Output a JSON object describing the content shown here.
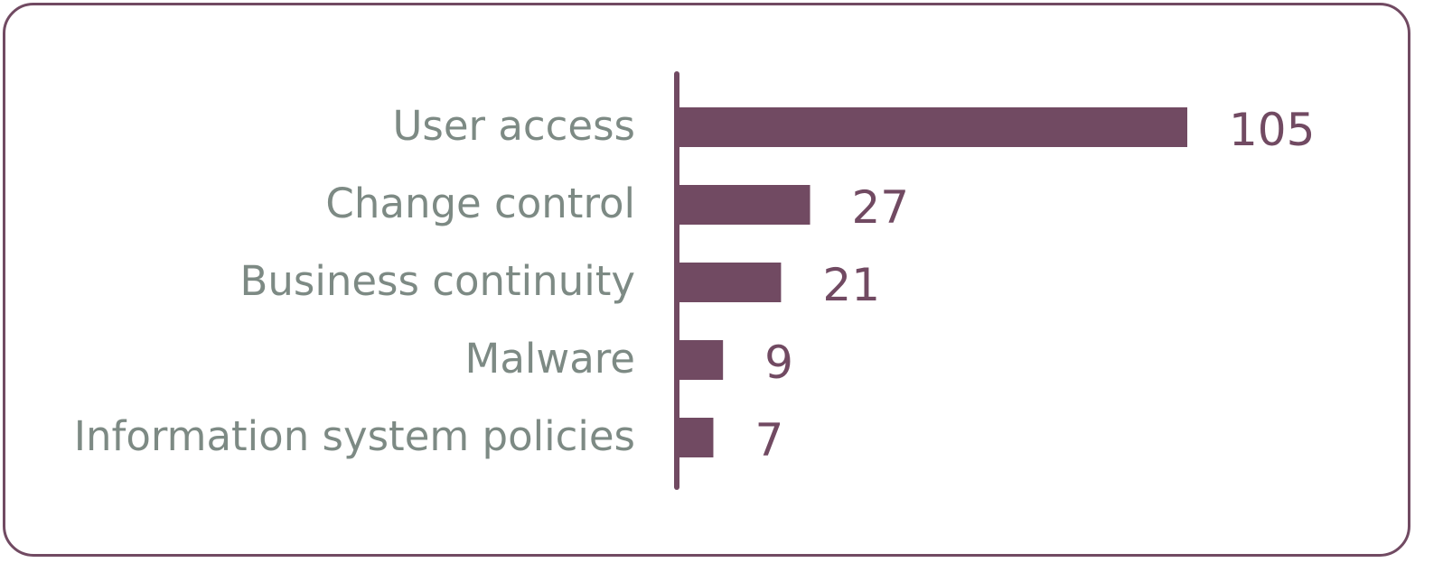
{
  "chart_data": {
    "type": "bar",
    "orientation": "horizontal",
    "categories": [
      "User access",
      "Change control",
      "Business continuity",
      "Malware",
      "Information system policies"
    ],
    "values": [
      105,
      27,
      21,
      9,
      7
    ],
    "value_labels": [
      "105",
      "27",
      "21",
      "9",
      "7"
    ],
    "title": "",
    "xlabel": "",
    "ylabel": "",
    "xlim": [
      0,
      105
    ],
    "grid": false,
    "legend": "none",
    "colors": {
      "bar": "#714a62",
      "category_text": "#7d8a84",
      "value_text": "#714a62",
      "axis": "#714a62",
      "frame": "#714a62"
    }
  }
}
